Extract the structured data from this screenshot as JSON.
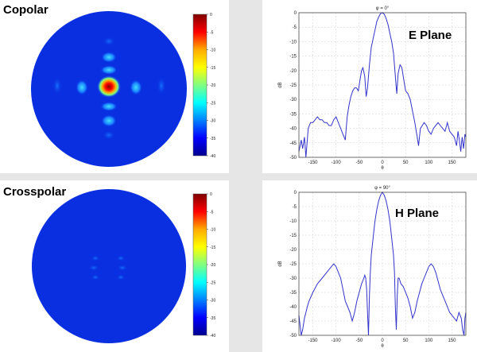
{
  "panels": {
    "copolar": {
      "title": "Copolar"
    },
    "crosspolar": {
      "title": "Crosspolar"
    }
  },
  "colorbar": {
    "ticks": [
      "0",
      "-5",
      "-10",
      "-15",
      "-20",
      "-25",
      "-30",
      "-35",
      "-40"
    ],
    "colors": [
      "#7f0000",
      "#ff0000",
      "#ffaa00",
      "#ffff00",
      "#80ff80",
      "#00ffff",
      "#0080ff",
      "#0000ff",
      "#00008f"
    ]
  },
  "chart_data": [
    {
      "type": "line",
      "title": "φ = 0°",
      "label": "E Plane",
      "xlabel": "θ",
      "ylabel": "dB",
      "xlim": [
        -180,
        180
      ],
      "ylim": [
        -50,
        0
      ],
      "xticks": [
        -150,
        -100,
        -50,
        0,
        50,
        100,
        150
      ],
      "yticks": [
        0,
        -5,
        -10,
        -15,
        -20,
        -25,
        -30,
        -35,
        -40,
        -45,
        -50
      ],
      "grid": true,
      "color": "#3333cc",
      "x": [
        -180,
        -175,
        -172,
        -168,
        -165,
        -160,
        -155,
        -150,
        -145,
        -140,
        -135,
        -130,
        -125,
        -120,
        -115,
        -110,
        -105,
        -100,
        -95,
        -90,
        -85,
        -80,
        -76,
        -72,
        -68,
        -64,
        -60,
        -56,
        -52,
        -48,
        -45,
        -42,
        -38,
        -35,
        -32,
        -28,
        -24,
        -20,
        -16,
        -12,
        -8,
        -4,
        0,
        4,
        8,
        12,
        16,
        20,
        24,
        28,
        31,
        34,
        38,
        42,
        46,
        50,
        55,
        60,
        65,
        70,
        75,
        78,
        82,
        86,
        90,
        95,
        100,
        105,
        110,
        115,
        120,
        125,
        130,
        135,
        140,
        145,
        150,
        155,
        160,
        163,
        166,
        169,
        172,
        175,
        178,
        180
      ],
      "y": [
        -48,
        -44,
        -47,
        -43,
        -50,
        -40,
        -38,
        -38,
        -37,
        -36,
        -37,
        -37,
        -38,
        -38,
        -39,
        -39,
        -37,
        -36,
        -38,
        -40,
        -42,
        -44,
        -36,
        -32,
        -29,
        -27,
        -26,
        -26,
        -27,
        -23,
        -20,
        -19,
        -22,
        -29,
        -26,
        -18,
        -12,
        -9,
        -6,
        -3,
        -1.5,
        -0.3,
        0,
        -0.5,
        -2,
        -4,
        -7,
        -10,
        -14,
        -22,
        -28,
        -21,
        -18,
        -19,
        -23,
        -27,
        -28,
        -30,
        -34,
        -38,
        -43,
        -46,
        -40,
        -39,
        -38,
        -39,
        -41,
        -42,
        -40,
        -39,
        -38,
        -39,
        -40,
        -41,
        -38,
        -41,
        -42,
        -43,
        -46,
        -41,
        -44,
        -48,
        -43,
        -47,
        -42,
        -43
      ]
    },
    {
      "type": "line",
      "title": "φ = 90°",
      "label": "H Plane",
      "xlabel": "θ",
      "ylabel": "dB",
      "xlim": [
        -180,
        180
      ],
      "ylim": [
        -50,
        0
      ],
      "xticks": [
        -150,
        -100,
        -50,
        0,
        50,
        100,
        150
      ],
      "yticks": [
        0,
        -5,
        -10,
        -15,
        -20,
        -25,
        -30,
        -35,
        -40,
        -45,
        -50
      ],
      "grid": true,
      "color": "#3333cc",
      "x": [
        -180,
        -178,
        -175,
        -172,
        -168,
        -165,
        -162,
        -158,
        -150,
        -140,
        -130,
        -120,
        -110,
        -105,
        -100,
        -95,
        -90,
        -85,
        -80,
        -75,
        -70,
        -65,
        -60,
        -55,
        -50,
        -45,
        -40,
        -38,
        -36,
        -34,
        -32,
        -30,
        -28,
        -26,
        -24,
        -20,
        -16,
        -12,
        -8,
        -4,
        0,
        4,
        8,
        12,
        16,
        20,
        24,
        26,
        28,
        30,
        32,
        34,
        36,
        38,
        40,
        45,
        50,
        55,
        60,
        65,
        70,
        75,
        80,
        85,
        90,
        95,
        100,
        105,
        110,
        115,
        120,
        125,
        130,
        135,
        140,
        145,
        150,
        155,
        160,
        165,
        170,
        173,
        176,
        178,
        180
      ],
      "y": [
        -43,
        -46,
        -50,
        -48,
        -44,
        -42,
        -40,
        -38,
        -35,
        -32,
        -30,
        -28,
        -26,
        -25,
        -26,
        -28,
        -30,
        -34,
        -38,
        -40,
        -42,
        -45,
        -42,
        -38,
        -35,
        -32,
        -30,
        -29,
        -30,
        -34,
        -42,
        -50,
        -36,
        -28,
        -22,
        -16,
        -10,
        -6,
        -3,
        -1,
        0,
        -1,
        -3,
        -6,
        -10,
        -16,
        -22,
        -28,
        -40,
        -48,
        -36,
        -30,
        -30,
        -31,
        -32,
        -33,
        -35,
        -37,
        -40,
        -44,
        -42,
        -38,
        -35,
        -32,
        -30,
        -28,
        -26,
        -25,
        -26,
        -28,
        -31,
        -34,
        -36,
        -38,
        -40,
        -42,
        -43,
        -44,
        -45,
        -42,
        -44,
        -48,
        -50,
        -44,
        -42
      ]
    }
  ]
}
